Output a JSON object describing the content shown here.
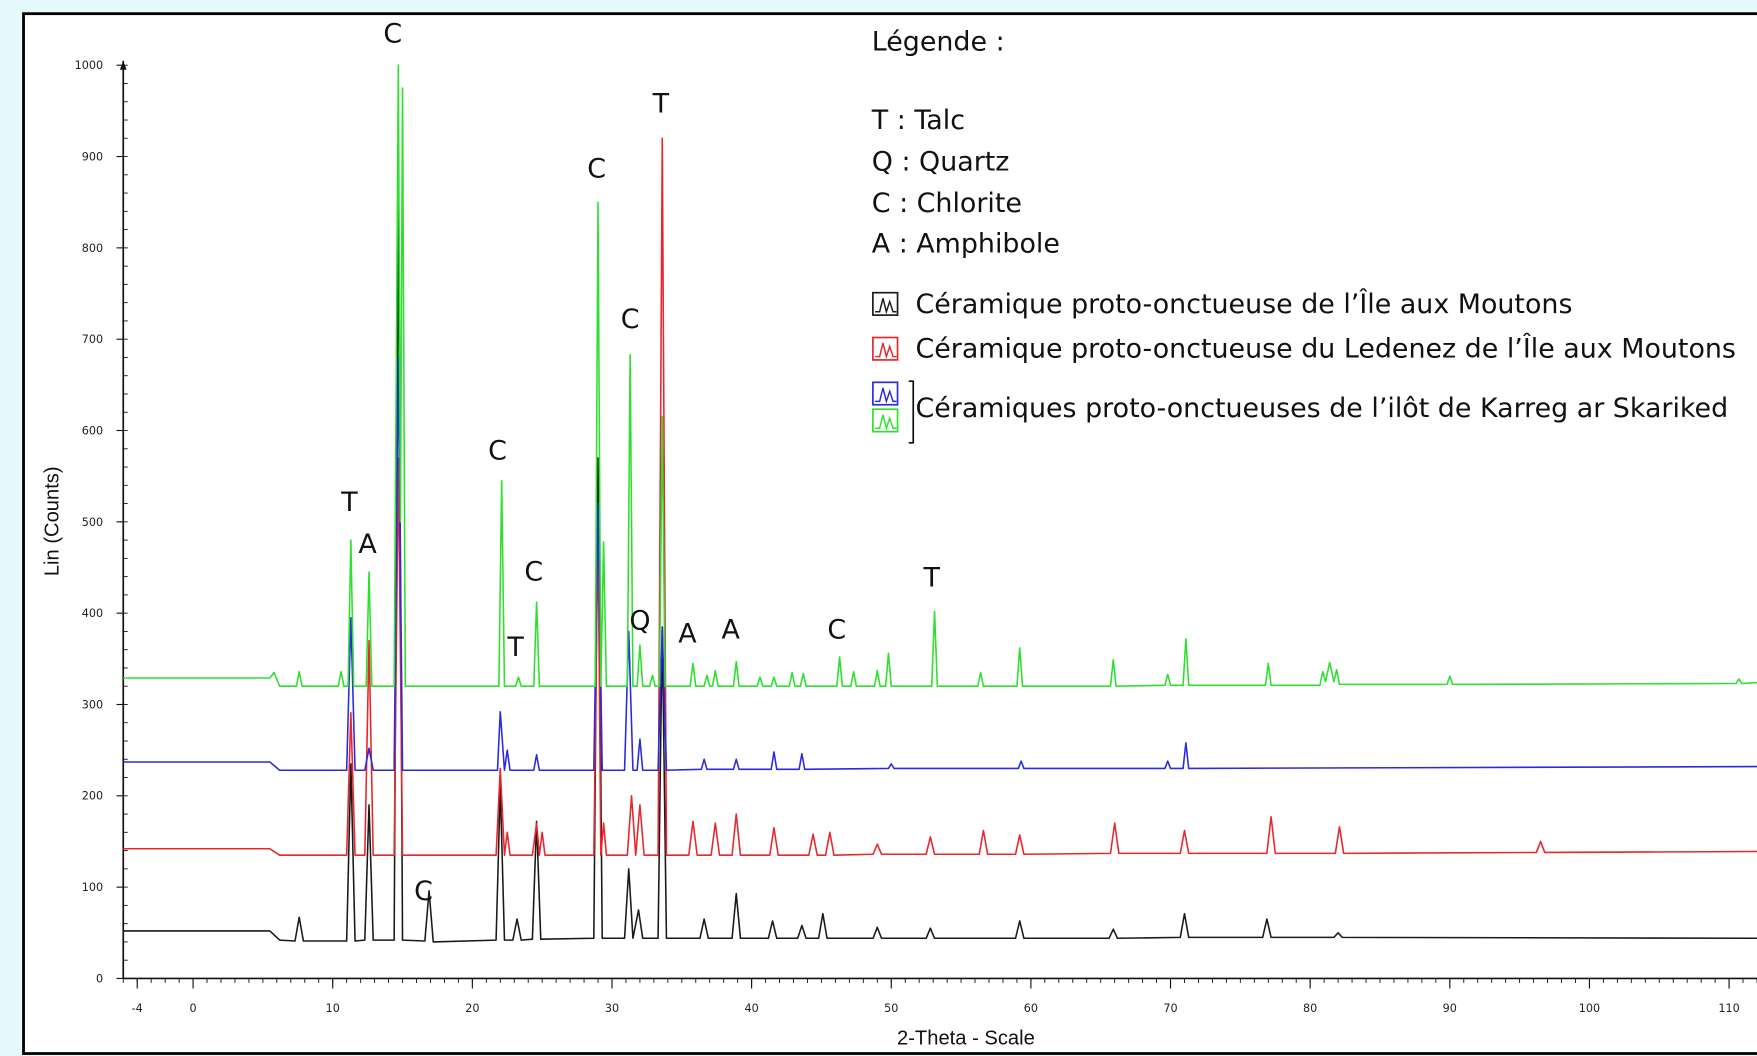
{
  "chart_data": {
    "type": "line",
    "x_label": "2-Theta - Scale",
    "y_label": "Lin (Counts)",
    "legend_title": "Légende :",
    "key": [
      "T : Talc",
      "Q : Quartz",
      "C : Chlorite",
      "A : Amphibole"
    ],
    "legend_group": "Céramiques proto-onctueuses de l’ilôt de Karreg ar Skariked",
    "xlim": [
      -5,
      112
    ],
    "ylim": [
      0,
      1000
    ],
    "xticks": [
      -4,
      0,
      10,
      20,
      30,
      40,
      50,
      60,
      70,
      80,
      90,
      100,
      110
    ],
    "yticks": [
      0,
      100,
      200,
      300,
      400,
      500,
      600,
      700,
      800,
      900,
      1000
    ],
    "annotations": [
      {
        "text": "C",
        "x": 14.3,
        "y": 1025
      },
      {
        "text": "T",
        "x": 33.5,
        "y": 948
      },
      {
        "text": "C",
        "x": 28.9,
        "y": 877
      },
      {
        "text": "C",
        "x": 31.3,
        "y": 712
      },
      {
        "text": "C",
        "x": 21.8,
        "y": 568
      },
      {
        "text": "T",
        "x": 11.2,
        "y": 512
      },
      {
        "text": "A",
        "x": 12.5,
        "y": 466
      },
      {
        "text": "C",
        "x": 24.4,
        "y": 436
      },
      {
        "text": "T",
        "x": 23.1,
        "y": 353
      },
      {
        "text": "Q",
        "x": 32.0,
        "y": 382
      },
      {
        "text": "A",
        "x": 35.4,
        "y": 368
      },
      {
        "text": "A",
        "x": 38.5,
        "y": 372
      },
      {
        "text": "C",
        "x": 46.1,
        "y": 372
      },
      {
        "text": "T",
        "x": 52.9,
        "y": 429
      },
      {
        "text": "C",
        "x": 16.5,
        "y": 86
      }
    ],
    "series": [
      {
        "name": "Céramique proto-onctueuse de l’Île aux Moutons",
        "color": "#1a1a1a",
        "x": [
          -5,
          5.5,
          6.2,
          7.3,
          7.6,
          7.9,
          11.0,
          11.3,
          11.6,
          12.3,
          12.6,
          12.9,
          14.4,
          14.7,
          15.0,
          16.6,
          16.9,
          17.2,
          21.7,
          22.0,
          22.3,
          22.9,
          23.2,
          23.5,
          24.3,
          24.6,
          24.9,
          28.7,
          29.0,
          29.3,
          30.9,
          31.2,
          31.5,
          31.9,
          32.2,
          33.3,
          33.6,
          33.9,
          36.3,
          36.6,
          36.9,
          38.6,
          38.9,
          39.2,
          41.2,
          41.5,
          41.8,
          43.3,
          43.6,
          43.9,
          44.8,
          45.1,
          45.4,
          48.7,
          49.0,
          49.3,
          52.5,
          52.8,
          53.1,
          58.9,
          59.2,
          59.5,
          65.6,
          65.9,
          66.2,
          70.7,
          71.0,
          71.3,
          76.6,
          76.9,
          77.2,
          81.7,
          82.0,
          82.3,
          112
        ],
        "values": [
          52,
          52,
          42,
          41,
          67,
          41,
          41,
          235,
          41,
          42,
          190,
          42,
          42,
          860,
          42,
          41,
          96,
          40,
          42,
          210,
          42,
          42,
          65,
          42,
          43,
          172,
          43,
          44,
          570,
          44,
          44,
          120,
          44,
          75,
          44,
          44,
          385,
          44,
          44,
          65,
          44,
          44,
          93,
          44,
          44,
          63,
          44,
          44,
          58,
          44,
          44,
          71,
          44,
          44,
          56,
          44,
          44,
          55,
          44,
          44,
          63,
          44,
          44,
          54,
          44,
          45,
          71,
          45,
          45,
          65,
          45,
          45,
          50,
          45,
          44
        ]
      },
      {
        "name": "Céramique proto-onctueuse du Ledenez de l’Île aux Moutons",
        "color": "#e8262b",
        "x": [
          -5,
          5.5,
          6.2,
          11.0,
          11.3,
          11.6,
          12.3,
          12.6,
          12.9,
          14.4,
          14.7,
          15.0,
          21.7,
          22.0,
          22.3,
          22.5,
          22.7,
          24.3,
          24.6,
          24.8,
          25.0,
          25.2,
          28.7,
          29.0,
          29.2,
          29.4,
          29.6,
          31.1,
          31.4,
          31.7,
          32.0,
          32.3,
          33.3,
          33.6,
          33.9,
          35.5,
          35.8,
          36.1,
          37.1,
          37.4,
          37.7,
          38.6,
          38.9,
          39.2,
          41.3,
          41.6,
          41.9,
          44.1,
          44.4,
          44.7,
          45.3,
          45.6,
          45.9,
          48.7,
          49.0,
          49.3,
          52.5,
          52.8,
          53.1,
          56.3,
          56.6,
          56.9,
          58.9,
          59.2,
          59.5,
          65.7,
          66.0,
          66.3,
          70.7,
          71.0,
          71.3,
          76.9,
          77.2,
          77.5,
          81.8,
          82.1,
          82.4,
          96.2,
          96.5,
          96.8,
          112
        ],
        "values": [
          142,
          142,
          135,
          135,
          291,
          135,
          135,
          370,
          135,
          135,
          570,
          135,
          135,
          230,
          135,
          160,
          135,
          135,
          170,
          135,
          160,
          135,
          135,
          500,
          135,
          170,
          135,
          135,
          200,
          135,
          190,
          135,
          135,
          920,
          135,
          135,
          172,
          135,
          135,
          170,
          135,
          135,
          180,
          135,
          135,
          165,
          135,
          135,
          158,
          135,
          135,
          160,
          135,
          136,
          147,
          136,
          136,
          155,
          136,
          136,
          162,
          136,
          136,
          157,
          136,
          137,
          170,
          137,
          137,
          162,
          137,
          137,
          177,
          137,
          137,
          166,
          137,
          138,
          150,
          138,
          139
        ]
      },
      {
        "color": "#2a2ae0",
        "x": [
          -5,
          5.5,
          6.2,
          11.0,
          11.3,
          11.6,
          12.3,
          12.6,
          12.9,
          14.4,
          14.7,
          15.0,
          21.8,
          22.0,
          22.3,
          22.5,
          22.7,
          24.4,
          24.6,
          24.8,
          28.7,
          29.0,
          29.3,
          30.9,
          31.2,
          31.5,
          31.8,
          32.0,
          32.2,
          33.3,
          33.6,
          33.9,
          36.4,
          36.6,
          36.8,
          38.7,
          38.9,
          39.1,
          41.4,
          41.6,
          41.8,
          43.4,
          43.6,
          43.8,
          49.8,
          50.0,
          50.2,
          59.1,
          59.3,
          59.5,
          69.6,
          69.8,
          70.0,
          70.9,
          71.1,
          71.3,
          112
        ],
        "values": [
          237,
          237,
          228,
          228,
          395,
          228,
          228,
          252,
          228,
          228,
          680,
          228,
          228,
          292,
          228,
          250,
          228,
          228,
          245,
          228,
          228,
          520,
          228,
          228,
          380,
          228,
          228,
          262,
          228,
          228,
          385,
          228,
          229,
          240,
          229,
          229,
          240,
          229,
          229,
          248,
          229,
          229,
          246,
          229,
          230,
          235,
          230,
          230,
          238,
          230,
          230,
          238,
          230,
          230,
          258,
          230,
          232
        ]
      },
      {
        "color": "#2ee02e",
        "x": [
          -5,
          5.5,
          5.8,
          6.2,
          7.4,
          7.6,
          7.8,
          10.4,
          10.6,
          10.8,
          11.1,
          11.3,
          11.5,
          12.4,
          12.6,
          12.8,
          14.4,
          14.7,
          14.85,
          15.0,
          15.2,
          21.9,
          22.1,
          22.3,
          23.1,
          23.3,
          23.5,
          24.4,
          24.6,
          24.8,
          28.8,
          29.0,
          29.2,
          29.4,
          29.6,
          31.1,
          31.3,
          31.5,
          31.8,
          32.0,
          32.2,
          32.7,
          32.9,
          33.1,
          33.4,
          33.6,
          33.8,
          35.6,
          35.8,
          36.0,
          36.6,
          36.8,
          37.0,
          37.2,
          37.4,
          37.6,
          38.7,
          38.9,
          39.1,
          40.4,
          40.6,
          40.8,
          41.4,
          41.6,
          41.8,
          42.7,
          42.9,
          43.1,
          43.5,
          43.7,
          43.9,
          46.1,
          46.3,
          46.5,
          47.1,
          47.3,
          47.5,
          48.8,
          49.0,
          49.2,
          49.6,
          49.8,
          50.0,
          52.9,
          53.1,
          53.3,
          56.2,
          56.4,
          56.6,
          59.0,
          59.2,
          59.4,
          65.7,
          65.9,
          66.1,
          69.6,
          69.8,
          70.0,
          70.9,
          71.1,
          71.3,
          76.8,
          77.0,
          77.2,
          80.7,
          80.9,
          81.1,
          81.4,
          81.7,
          81.9,
          82.1,
          89.8,
          90.0,
          90.2,
          110.5,
          110.7,
          110.9,
          112
        ],
        "values": [
          329,
          329,
          335,
          320,
          320,
          336,
          320,
          320,
          336,
          320,
          320,
          480,
          320,
          320,
          445,
          320,
          320,
          1000,
          500,
          975,
          320,
          320,
          545,
          320,
          320,
          330,
          320,
          320,
          412,
          320,
          320,
          850,
          320,
          478,
          320,
          320,
          683,
          320,
          320,
          365,
          320,
          320,
          332,
          320,
          320,
          615,
          320,
          320,
          345,
          320,
          320,
          332,
          320,
          320,
          337,
          320,
          320,
          347,
          320,
          320,
          330,
          320,
          320,
          330,
          320,
          320,
          335,
          320,
          320,
          334,
          320,
          320,
          352,
          320,
          320,
          336,
          320,
          320,
          337,
          320,
          320,
          356,
          320,
          320,
          402,
          320,
          320,
          335,
          320,
          320,
          362,
          320,
          320,
          349,
          320,
          321,
          333,
          321,
          321,
          372,
          321,
          321,
          345,
          321,
          321,
          336,
          325,
          346,
          325,
          338,
          322,
          322,
          331,
          322,
          323,
          328,
          323,
          324
        ]
      }
    ]
  }
}
